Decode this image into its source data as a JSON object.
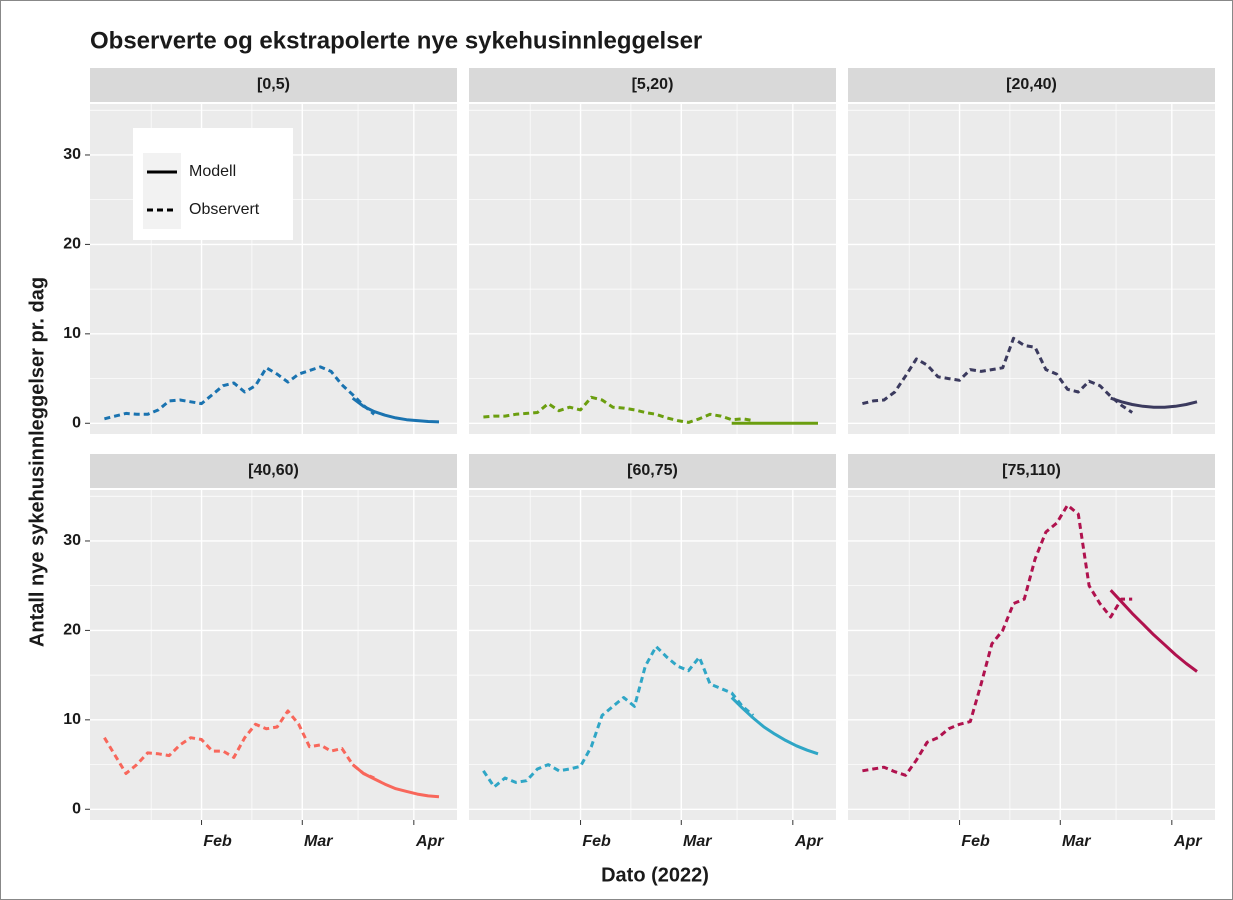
{
  "title": "Observerte og ekstrapolerte nye sykehusinnleggelser",
  "x_label": "Dato (2022)",
  "y_label": "Antall nye sykehusinnleggelser pr. dag",
  "legend": {
    "position": "top-left",
    "entries": [
      {
        "label": "Modell",
        "linetype": "solid"
      },
      {
        "label": "Observert",
        "linetype": "dashed"
      }
    ]
  },
  "chart_data": [
    {
      "type": "line",
      "title": "[0,5)",
      "xlim": [
        1,
        103
      ],
      "xticks": [
        {
          "value": 32,
          "label": "Feb"
        },
        {
          "value": 60,
          "label": "Mar"
        },
        {
          "value": 91,
          "label": "Apr"
        }
      ],
      "ylim": [
        -1.2,
        35.7
      ],
      "yticks": [
        0,
        10,
        20,
        30
      ],
      "grid": true,
      "series": [
        {
          "linetype": "dashed",
          "color": "#1a73b0",
          "x": [
            5,
            8,
            11,
            14,
            17,
            20,
            23,
            26,
            29,
            32,
            35,
            38,
            41,
            44,
            47,
            50,
            53,
            56,
            59,
            62,
            65,
            68,
            71,
            74,
            77,
            80
          ],
          "values": [
            0.5,
            0.8,
            1.1,
            1,
            1,
            1.5,
            2.5,
            2.6,
            2.4,
            2.2,
            3.2,
            4.2,
            4.5,
            3.5,
            4.2,
            6.2,
            5.5,
            4.6,
            5.5,
            5.9,
            6.3,
            5.8,
            4.3,
            3.2,
            2,
            1
          ]
        },
        {
          "linetype": "solid",
          "color": "#1a73b0",
          "x": [
            74,
            77,
            80,
            83,
            86,
            89,
            92,
            95,
            98
          ],
          "values": [
            2.8,
            1.9,
            1.3,
            0.9,
            0.6,
            0.4,
            0.3,
            0.2,
            0.15
          ]
        }
      ]
    },
    {
      "type": "line",
      "title": "[5,20)",
      "xlim": [
        1,
        103
      ],
      "xticks": [
        {
          "value": 32,
          "label": "Feb"
        },
        {
          "value": 60,
          "label": "Mar"
        },
        {
          "value": 91,
          "label": "Apr"
        }
      ],
      "ylim": [
        -1.2,
        35.7
      ],
      "yticks": [
        0,
        10,
        20,
        30
      ],
      "grid": true,
      "series": [
        {
          "linetype": "dashed",
          "color": "#6b9e0f",
          "x": [
            5,
            8,
            11,
            14,
            17,
            20,
            23,
            26,
            29,
            32,
            35,
            38,
            41,
            44,
            47,
            50,
            53,
            56,
            59,
            62,
            65,
            68,
            71,
            74,
            77,
            80
          ],
          "values": [
            0.7,
            0.8,
            0.8,
            1,
            1.1,
            1.2,
            2.2,
            1.4,
            1.8,
            1.5,
            2.9,
            2.6,
            1.8,
            1.7,
            1.5,
            1.2,
            1,
            0.6,
            0.3,
            0.1,
            0.5,
            1,
            0.8,
            0.4,
            0.5,
            0.3
          ]
        },
        {
          "linetype": "solid",
          "color": "#6b9e0f",
          "x": [
            74,
            77,
            80,
            83,
            86,
            89,
            92,
            95,
            98
          ],
          "values": [
            0,
            0,
            0,
            0,
            0,
            0,
            0,
            0,
            0
          ]
        }
      ]
    },
    {
      "type": "line",
      "title": "[20,40)",
      "xlim": [
        1,
        103
      ],
      "xticks": [
        {
          "value": 32,
          "label": "Feb"
        },
        {
          "value": 60,
          "label": "Mar"
        },
        {
          "value": 91,
          "label": "Apr"
        }
      ],
      "ylim": [
        -1.2,
        35.7
      ],
      "yticks": [
        0,
        10,
        20,
        30
      ],
      "grid": true,
      "series": [
        {
          "linetype": "dashed",
          "color": "#3b3a5e",
          "x": [
            5,
            8,
            11,
            14,
            17,
            20,
            23,
            26,
            29,
            32,
            35,
            38,
            41,
            44,
            47,
            50,
            53,
            56,
            59,
            62,
            65,
            68,
            71,
            74,
            77,
            80
          ],
          "values": [
            2.2,
            2.5,
            2.6,
            3.5,
            5.3,
            7.2,
            6.5,
            5.2,
            5,
            4.8,
            6,
            5.8,
            6,
            6.2,
            9.5,
            8.7,
            8.5,
            6,
            5.5,
            3.8,
            3.5,
            4.7,
            4.2,
            3,
            2,
            1.2
          ]
        },
        {
          "linetype": "solid",
          "color": "#3b3a5e",
          "x": [
            74,
            77,
            80,
            83,
            86,
            89,
            92,
            95,
            98
          ],
          "values": [
            2.8,
            2.4,
            2.1,
            1.9,
            1.8,
            1.8,
            1.9,
            2.1,
            2.4
          ]
        }
      ]
    },
    {
      "type": "line",
      "title": "[40,60)",
      "xlim": [
        1,
        103
      ],
      "xticks": [
        {
          "value": 32,
          "label": "Feb"
        },
        {
          "value": 60,
          "label": "Mar"
        },
        {
          "value": 91,
          "label": "Apr"
        }
      ],
      "ylim": [
        -1.2,
        35.7
      ],
      "yticks": [
        0,
        10,
        20,
        30
      ],
      "grid": true,
      "series": [
        {
          "linetype": "dashed",
          "color": "#f8675b",
          "x": [
            5,
            8,
            11,
            14,
            17,
            20,
            23,
            26,
            29,
            32,
            35,
            38,
            41,
            44,
            47,
            50,
            53,
            56,
            59,
            62,
            65,
            68,
            71,
            74,
            77,
            80
          ],
          "values": [
            8,
            6,
            4,
            5,
            6.3,
            6.2,
            6,
            7.2,
            8,
            7.8,
            6.5,
            6.5,
            5.8,
            8,
            9.5,
            9,
            9.2,
            11,
            9.5,
            7,
            7.2,
            6.5,
            6.8,
            5,
            4,
            3.5
          ]
        },
        {
          "linetype": "solid",
          "color": "#f8675b",
          "x": [
            74,
            77,
            80,
            83,
            86,
            89,
            92,
            95,
            98
          ],
          "values": [
            5,
            4,
            3.4,
            2.8,
            2.3,
            2,
            1.7,
            1.5,
            1.4
          ]
        }
      ]
    },
    {
      "type": "line",
      "title": "[60,75)",
      "xlim": [
        1,
        103
      ],
      "xticks": [
        {
          "value": 32,
          "label": "Feb"
        },
        {
          "value": 60,
          "label": "Mar"
        },
        {
          "value": 91,
          "label": "Apr"
        }
      ],
      "ylim": [
        -1.2,
        35.7
      ],
      "yticks": [
        0,
        10,
        20,
        30
      ],
      "grid": true,
      "series": [
        {
          "linetype": "dashed",
          "color": "#2fa6c6",
          "x": [
            5,
            8,
            11,
            14,
            17,
            20,
            23,
            26,
            29,
            32,
            35,
            38,
            41,
            44,
            47,
            50,
            53,
            56,
            59,
            62,
            65,
            68,
            71,
            74,
            77,
            80
          ],
          "values": [
            4.3,
            2.5,
            3.5,
            3,
            3.2,
            4.5,
            5,
            4.3,
            4.5,
            4.8,
            7,
            10.5,
            11.5,
            12.5,
            11.5,
            16,
            18.2,
            17,
            16,
            15.5,
            17,
            14,
            13.5,
            13,
            11.5,
            10.5
          ]
        },
        {
          "linetype": "solid",
          "color": "#2fa6c6",
          "x": [
            74,
            77,
            80,
            83,
            86,
            89,
            92,
            95,
            98
          ],
          "values": [
            12.5,
            11.3,
            10.2,
            9.2,
            8.4,
            7.7,
            7.1,
            6.6,
            6.2
          ]
        }
      ]
    },
    {
      "type": "line",
      "title": "[75,110)",
      "xlim": [
        1,
        103
      ],
      "xticks": [
        {
          "value": 32,
          "label": "Feb"
        },
        {
          "value": 60,
          "label": "Mar"
        },
        {
          "value": 91,
          "label": "Apr"
        }
      ],
      "ylim": [
        -1.2,
        35.7
      ],
      "yticks": [
        0,
        10,
        20,
        30
      ],
      "grid": true,
      "series": [
        {
          "linetype": "dashed",
          "color": "#b0124e",
          "x": [
            5,
            8,
            11,
            14,
            17,
            20,
            23,
            26,
            29,
            32,
            35,
            38,
            41,
            44,
            47,
            50,
            53,
            56,
            59,
            62,
            65,
            68,
            71,
            74,
            77,
            80
          ],
          "values": [
            4.3,
            4.5,
            4.7,
            4.2,
            3.8,
            5.5,
            7.5,
            8,
            9,
            9.5,
            9.8,
            14,
            18.5,
            20,
            23,
            23.5,
            28,
            31,
            32,
            34,
            33,
            25,
            23,
            21.5,
            23.5,
            23.5
          ]
        },
        {
          "linetype": "solid",
          "color": "#b0124e",
          "x": [
            74,
            77,
            80,
            83,
            86,
            89,
            92,
            95,
            98
          ],
          "values": [
            24.5,
            23.2,
            21.9,
            20.7,
            19.5,
            18.4,
            17.3,
            16.3,
            15.4
          ]
        }
      ]
    }
  ]
}
